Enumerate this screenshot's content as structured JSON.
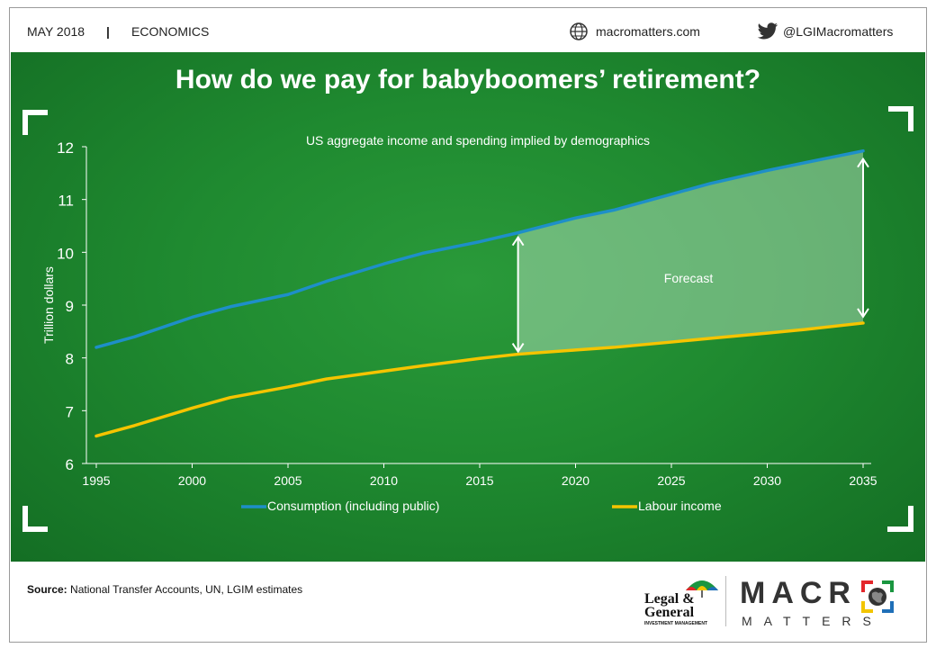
{
  "header": {
    "date": "MAY 2018",
    "separator": "|",
    "category": "ECONOMICS",
    "website": "macromatters.com",
    "twitter": "@LGIMacromatters",
    "globe_icon": "globe-icon",
    "twitter_icon": "twitter-bird-icon"
  },
  "title": "How do we pay for babyboomers’ retirement?",
  "footer": {
    "source_label": "Source:",
    "source_text": "National Transfer Accounts, UN, LGIM estimates",
    "lg_logo_line1": "Legal &",
    "lg_logo_line2": "General",
    "lg_logo_line3": "INVESTMENT MANAGEMENT",
    "macro_word": "MACR",
    "macro_o": "O",
    "matters_word": "MATTERS"
  },
  "colors": {
    "consumption": "#1e8fc8",
    "labour": "#f5c400",
    "forecast_fill": "#a8d8b0",
    "background": "#1f8a30"
  },
  "chart_data": {
    "type": "line",
    "title": "US aggregate income and spending implied by demographics",
    "ylabel": "Trillion dollars",
    "xlabel": "",
    "xlim": [
      1995,
      2035
    ],
    "ylim": [
      6,
      12
    ],
    "xticks": [
      "1995",
      "2000",
      "2005",
      "2010",
      "2015",
      "2020",
      "2025",
      "2030",
      "2035"
    ],
    "yticks": [
      "6",
      "7",
      "8",
      "9",
      "10",
      "11",
      "12"
    ],
    "grid": false,
    "legend_position": "bottom",
    "annotation": "Forecast",
    "forecast_start": 2017,
    "forecast_end": 2035,
    "series": [
      {
        "name": "Consumption (including public)",
        "x": [
          1995,
          1997,
          2000,
          2002,
          2005,
          2007,
          2010,
          2012,
          2015,
          2017,
          2020,
          2022,
          2025,
          2027,
          2030,
          2032,
          2035
        ],
        "y": [
          8.2,
          8.4,
          8.77,
          8.97,
          9.2,
          9.45,
          9.78,
          9.98,
          10.2,
          10.37,
          10.65,
          10.8,
          11.1,
          11.3,
          11.55,
          11.7,
          11.92
        ]
      },
      {
        "name": "Labour income",
        "x": [
          1995,
          1997,
          2000,
          2002,
          2005,
          2007,
          2010,
          2012,
          2015,
          2017,
          2020,
          2022,
          2025,
          2027,
          2030,
          2032,
          2035
        ],
        "y": [
          6.52,
          6.72,
          7.05,
          7.25,
          7.45,
          7.6,
          7.75,
          7.85,
          7.99,
          8.07,
          8.15,
          8.2,
          8.3,
          8.37,
          8.47,
          8.54,
          8.66
        ]
      }
    ]
  }
}
